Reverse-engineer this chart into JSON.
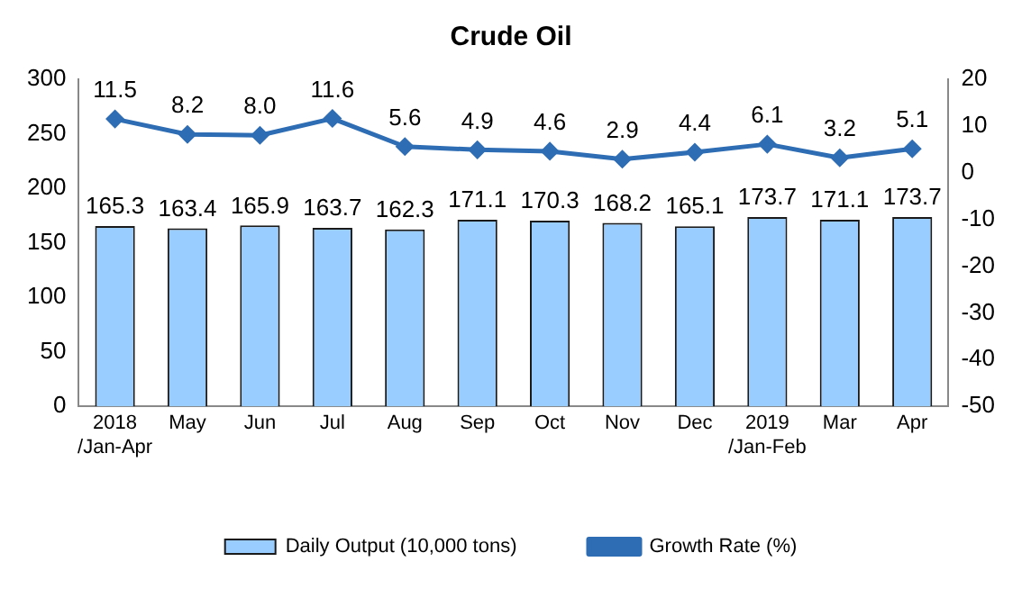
{
  "chart_data": {
    "type": "bar",
    "title": "Crude Oil",
    "categories": [
      "2018\n/Jan-Apr",
      "May",
      "Jun",
      "Jul",
      "Aug",
      "Sep",
      "Oct",
      "Nov",
      "Dec",
      "2019\n/Jan-Feb",
      "Mar",
      "Apr"
    ],
    "series": [
      {
        "name": "Daily Output (10,000 tons)",
        "color": "#99ccff",
        "values": [
          165.3,
          163.4,
          165.9,
          163.7,
          162.3,
          171.1,
          170.3,
          168.2,
          165.1,
          173.7,
          171.1,
          173.7
        ]
      },
      {
        "name": "Growth Rate (%)",
        "type": "line",
        "axis": "y2",
        "color": "#2e6db4",
        "marker": "diamond",
        "values": [
          11.5,
          8.2,
          8.0,
          11.6,
          5.6,
          4.9,
          4.6,
          2.9,
          4.4,
          6.1,
          3.2,
          5.1
        ],
        "value_labels": [
          "11.5",
          "8.2",
          "8.0",
          "11.6",
          "5.6",
          "4.9",
          "4.6",
          "2.9",
          "4.4",
          "6.1",
          "3.2",
          "5.1"
        ]
      }
    ],
    "ylim": [
      0,
      300
    ],
    "yticks": [
      0,
      50,
      100,
      150,
      200,
      250,
      300
    ],
    "y2lim": [
      -50,
      20
    ],
    "y2ticks": [
      -50,
      -40,
      -30,
      -20,
      -10,
      0,
      10,
      20
    ],
    "data_labels": true,
    "grid": false,
    "legend": "bottom"
  }
}
